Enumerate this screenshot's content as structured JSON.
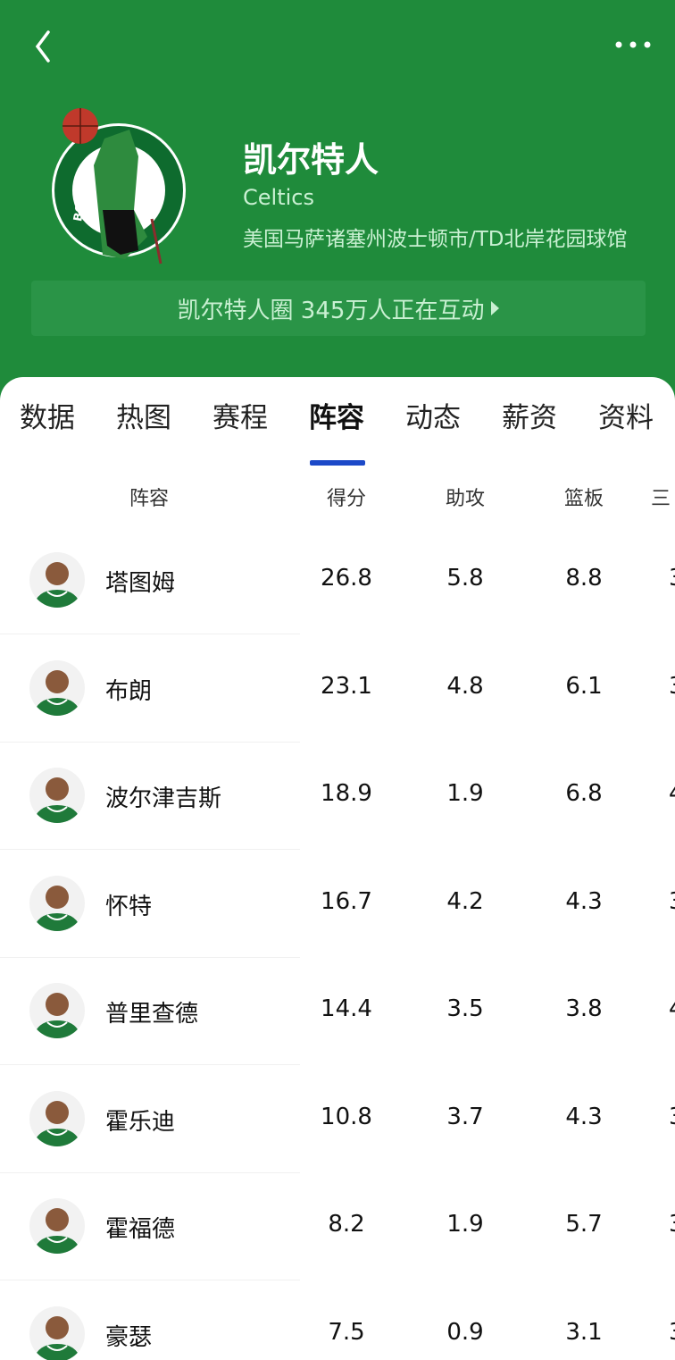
{
  "header": {
    "title": "凯尔特人",
    "subtitle": "Celtics",
    "location": "美国马萨诸塞州波士顿市/TD北岸花园球馆",
    "community": "凯尔特人圈 345万人正在互动",
    "theme_color": "#1f8b3b",
    "logo_text": "BOSTON CELTICS"
  },
  "tabs": [
    {
      "label": "数据"
    },
    {
      "label": "热图"
    },
    {
      "label": "赛程"
    },
    {
      "label": "阵容",
      "active": true
    },
    {
      "label": "动态"
    },
    {
      "label": "薪资"
    },
    {
      "label": "资料"
    }
  ],
  "table": {
    "columns": [
      "阵容",
      "得分",
      "助攻",
      "篮板",
      "三"
    ],
    "rows": [
      {
        "name": "塔图姆",
        "pts": "26.8",
        "ast": "5.8",
        "reb": "8.8",
        "tp": "3"
      },
      {
        "name": "布朗",
        "pts": "23.1",
        "ast": "4.8",
        "reb": "6.1",
        "tp": "3"
      },
      {
        "name": "波尔津吉斯",
        "pts": "18.9",
        "ast": "1.9",
        "reb": "6.8",
        "tp": "4"
      },
      {
        "name": "怀特",
        "pts": "16.7",
        "ast": "4.2",
        "reb": "4.3",
        "tp": "3"
      },
      {
        "name": "普里查德",
        "pts": "14.4",
        "ast": "3.5",
        "reb": "3.8",
        "tp": "4"
      },
      {
        "name": "霍乐迪",
        "pts": "10.8",
        "ast": "3.7",
        "reb": "4.3",
        "tp": "3"
      },
      {
        "name": "霍福德",
        "pts": "8.2",
        "ast": "1.9",
        "reb": "5.7",
        "tp": "3"
      },
      {
        "name": "豪瑟",
        "pts": "7.5",
        "ast": "0.9",
        "reb": "3.1",
        "tp": "3"
      }
    ]
  }
}
